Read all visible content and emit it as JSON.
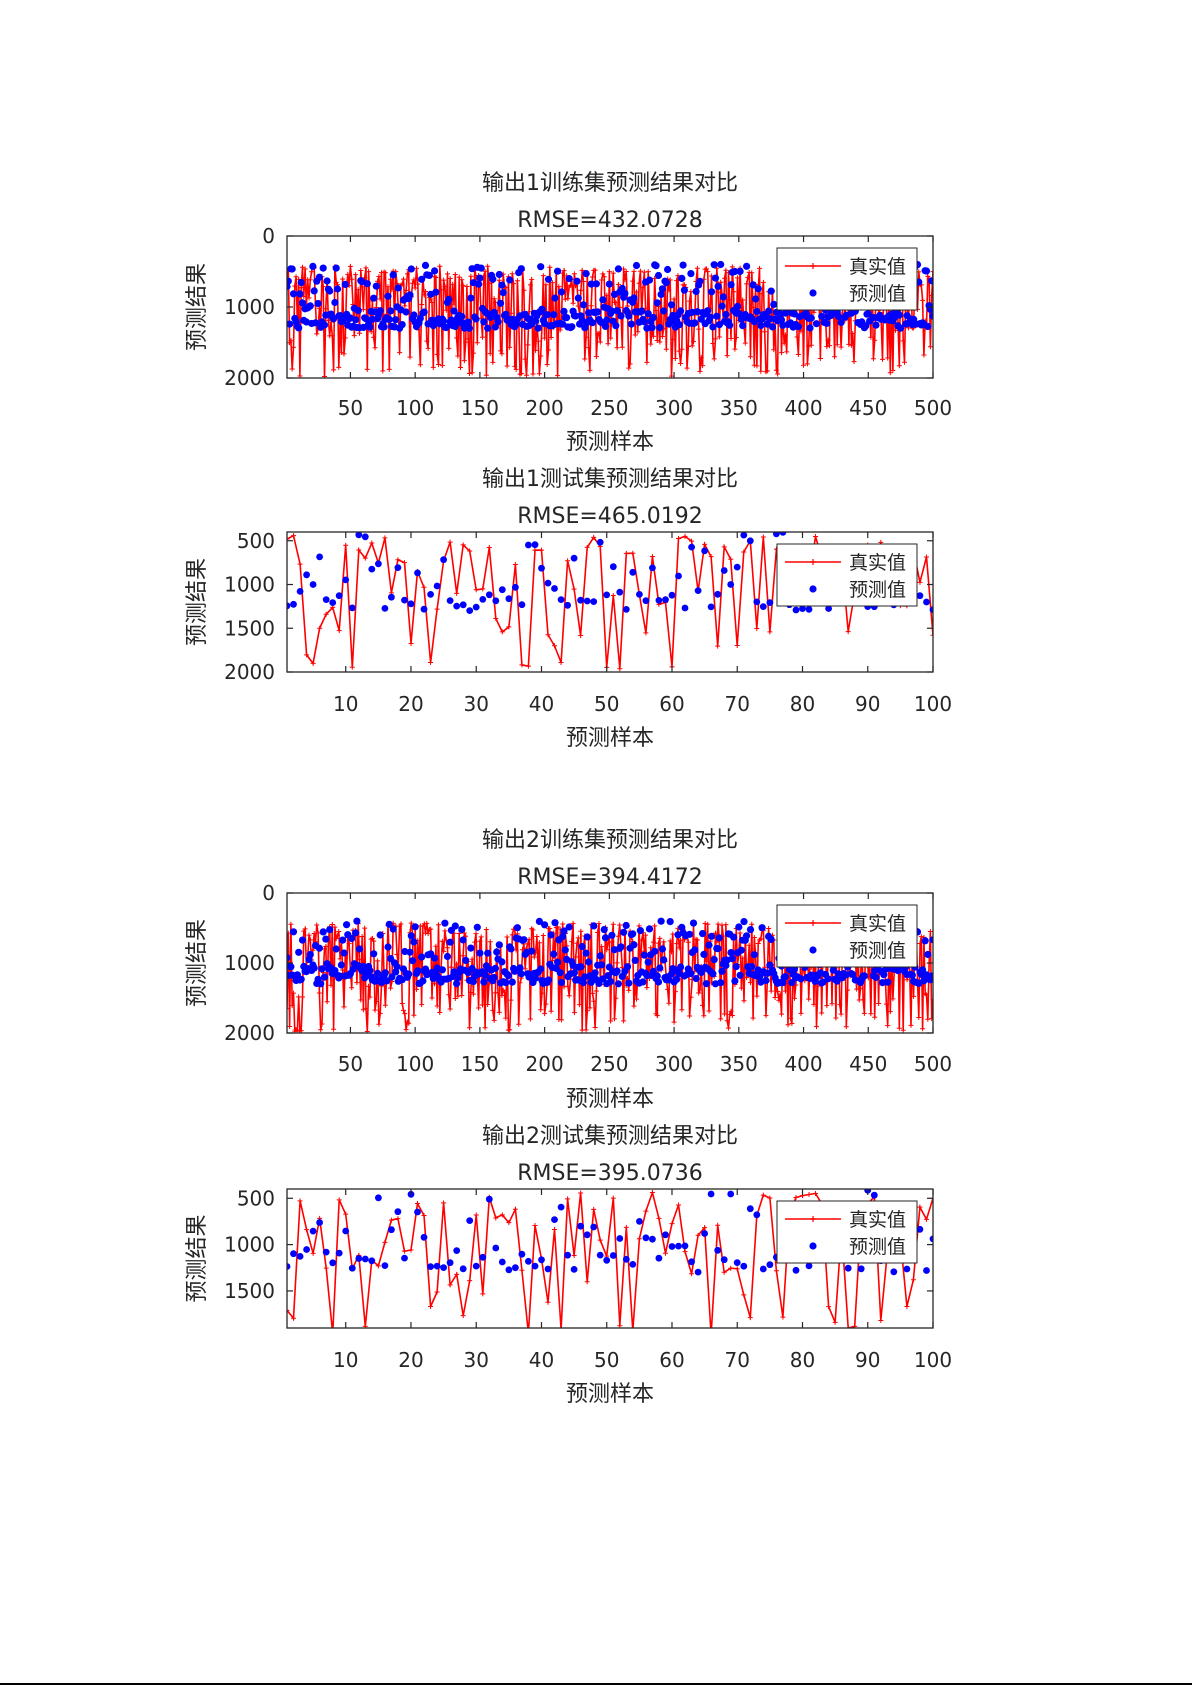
{
  "colors": {
    "true_series": "#ff0000",
    "pred_series": "#0000ff",
    "axes": "#262626"
  },
  "chart_data": [
    {
      "type": "line",
      "title": "输出1训练集预测结果对比",
      "subtitle": "RMSE=432.0728",
      "xlabel": "预测样本",
      "ylabel": "预测结果",
      "xlim": [
        1,
        500
      ],
      "ylim": [
        0,
        2000
      ],
      "y_reversed": true,
      "xticks": [
        50,
        100,
        150,
        200,
        250,
        300,
        350,
        400,
        450,
        500
      ],
      "yticks": [
        0,
        1000,
        2000
      ],
      "legend": [
        "真实值",
        "预测值"
      ],
      "legend_position": "top-right",
      "n_points": 500
    },
    {
      "type": "line",
      "title": "输出1测试集预测结果对比",
      "subtitle": "RMSE=465.0192",
      "xlabel": "预测样本",
      "ylabel": "预测结果",
      "xlim": [
        1,
        100
      ],
      "ylim": [
        400,
        2000
      ],
      "y_reversed": true,
      "xticks": [
        10,
        20,
        30,
        40,
        50,
        60,
        70,
        80,
        90,
        100
      ],
      "yticks": [
        500,
        1000,
        1500,
        2000
      ],
      "legend": [
        "真实值",
        "预测值"
      ],
      "legend_position": "top-right",
      "n_points": 100
    },
    {
      "type": "line",
      "title": "输出2训练集预测结果对比",
      "subtitle": "RMSE=394.4172",
      "xlabel": "预测样本",
      "ylabel": "预测结果",
      "xlim": [
        1,
        500
      ],
      "ylim": [
        0,
        2000
      ],
      "y_reversed": true,
      "xticks": [
        50,
        100,
        150,
        200,
        250,
        300,
        350,
        400,
        450,
        500
      ],
      "yticks": [
        0,
        1000,
        2000
      ],
      "legend": [
        "真实值",
        "预测值"
      ],
      "legend_position": "top-right",
      "n_points": 500
    },
    {
      "type": "line",
      "title": "输出2测试集预测结果对比",
      "subtitle": "RMSE=395.0736",
      "xlabel": "预测样本",
      "ylabel": "预测结果",
      "xlim": [
        1,
        100
      ],
      "ylim": [
        400,
        1900
      ],
      "y_reversed": true,
      "xticks": [
        10,
        20,
        30,
        40,
        50,
        60,
        70,
        80,
        90,
        100
      ],
      "yticks": [
        500,
        1000,
        1500
      ],
      "legend": [
        "真实值",
        "预测值"
      ],
      "legend_position": "top-right",
      "n_points": 100
    }
  ]
}
